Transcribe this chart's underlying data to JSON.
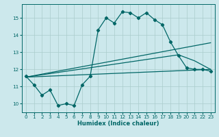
{
  "xlabel": "Humidex (Indice chaleur)",
  "bg_color": "#cce8ec",
  "grid_color": "#aacccc",
  "line_color": "#006666",
  "xlim": [
    -0.5,
    23.5
  ],
  "ylim": [
    9.5,
    15.8
  ],
  "xticks": [
    0,
    1,
    2,
    3,
    4,
    5,
    6,
    7,
    8,
    9,
    10,
    11,
    12,
    13,
    14,
    15,
    16,
    17,
    18,
    19,
    20,
    21,
    22,
    23
  ],
  "yticks": [
    10,
    11,
    12,
    13,
    14,
    15
  ],
  "series1_x": [
    0,
    1,
    2,
    3,
    4,
    5,
    6,
    7,
    8,
    9,
    10,
    11,
    12,
    13,
    14,
    15,
    16,
    17,
    18,
    19,
    20,
    21,
    22,
    23
  ],
  "series1_y": [
    11.6,
    11.1,
    10.5,
    10.8,
    9.9,
    10.0,
    9.9,
    11.1,
    11.6,
    14.3,
    15.0,
    14.7,
    15.35,
    15.3,
    15.0,
    15.3,
    14.9,
    14.6,
    13.6,
    12.8,
    12.1,
    12.0,
    12.0,
    11.9
  ],
  "series2_x": [
    0,
    23
  ],
  "series2_y": [
    11.55,
    13.55
  ],
  "series3_x": [
    0,
    19,
    21,
    23
  ],
  "series3_y": [
    11.55,
    12.85,
    12.5,
    12.0
  ],
  "series4_x": [
    0,
    23
  ],
  "series4_y": [
    11.55,
    12.0
  ]
}
